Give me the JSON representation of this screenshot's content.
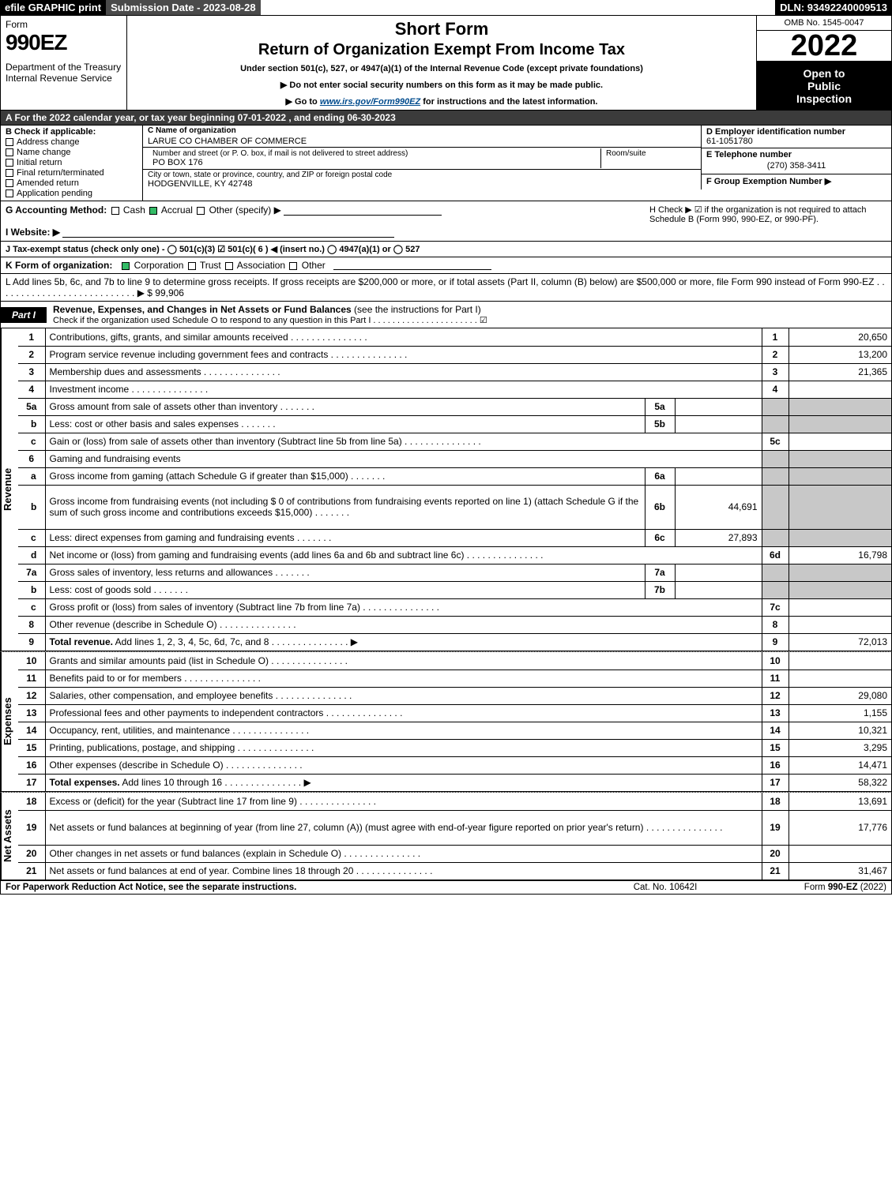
{
  "topbar": {
    "efile": "efile GRAPHIC print",
    "submission": "Submission Date - 2023-08-28",
    "dln": "DLN: 93492240009513"
  },
  "header": {
    "form_label": "Form",
    "form_number": "990EZ",
    "dept1": "Department of the Treasury",
    "dept2": "Internal Revenue Service",
    "title1": "Short Form",
    "title2": "Return of Organization Exempt From Income Tax",
    "subtitle": "Under section 501(c), 527, or 4947(a)(1) of the Internal Revenue Code (except private foundations)",
    "arrow1": "▶ Do not enter social security numbers on this form as it may be made public.",
    "arrow2_pre": "▶ Go to ",
    "arrow2_link": "www.irs.gov/Form990EZ",
    "arrow2_post": " for instructions and the latest information.",
    "omb": "OMB No. 1545-0047",
    "year": "2022",
    "open1": "Open to",
    "open2": "Public",
    "open3": "Inspection"
  },
  "rowA": "A  For the 2022 calendar year, or tax year beginning 07-01-2022 , and ending 06-30-2023",
  "colB": {
    "head": "B  Check if applicable:",
    "items": [
      "Address change",
      "Name change",
      "Initial return",
      "Final return/terminated",
      "Amended return",
      "Application pending"
    ]
  },
  "colC": {
    "name_label": "C Name of organization",
    "name": "LARUE CO CHAMBER OF COMMERCE",
    "street_label": "Number and street (or P. O. box, if mail is not delivered to street address)",
    "street": "PO BOX 176",
    "room_label": "Room/suite",
    "city_label": "City or town, state or province, country, and ZIP or foreign postal code",
    "city": "HODGENVILLE, KY  42748"
  },
  "colDE": {
    "d_label": "D Employer identification number",
    "d_value": "61-1051780",
    "e_label": "E Telephone number",
    "e_value": "(270) 358-3411",
    "f_label": "F Group Exemption Number   ▶"
  },
  "rowG": {
    "g_label": "G Accounting Method:",
    "g_opts": [
      "Cash",
      "Accrual",
      "Other (specify) ▶"
    ],
    "h_text": "H  Check ▶  ☑  if the organization is not required to attach Schedule B (Form 990, 990-EZ, or 990-PF).",
    "i_label": "I Website: ▶"
  },
  "rowJ": "J Tax-exempt status (check only one) - ◯ 501(c)(3)  ☑ 501(c)( 6 ) ◀ (insert no.)  ◯ 4947(a)(1) or  ◯ 527",
  "rowK": {
    "label": "K Form of organization:",
    "opts": [
      "Corporation",
      "Trust",
      "Association",
      "Other"
    ]
  },
  "rowL": {
    "text": "L Add lines 5b, 6c, and 7b to line 9 to determine gross receipts. If gross receipts are $200,000 or more, or if total assets (Part II, column (B) below) are $500,000 or more, file Form 990 instead of Form 990-EZ  .  .  .  .  .  .  .  .  .  .  .  .  .  .  .  .  .  .  .  .  .  .  .  .  .  .  .  ▶ $ ",
    "value": "99,906"
  },
  "part1": {
    "tab": "Part I",
    "title": "Revenue, Expenses, and Changes in Net Assets or Fund Balances",
    "title_note": "(see the instructions for Part I)",
    "checkline": "Check if the organization used Schedule O to respond to any question in this Part I  .  .  .  .  .  .  .  .  .  .  .  .  .  .  .  .  .  .  .  .  .  .  ☑"
  },
  "revenue": {
    "side": "Revenue",
    "rows": [
      {
        "ln": "1",
        "desc": "Contributions, gifts, grants, and similar amounts received",
        "num": "1",
        "val": "20,650"
      },
      {
        "ln": "2",
        "desc": "Program service revenue including government fees and contracts",
        "num": "2",
        "val": "13,200"
      },
      {
        "ln": "3",
        "desc": "Membership dues and assessments",
        "num": "3",
        "val": "21,365"
      },
      {
        "ln": "4",
        "desc": "Investment income",
        "num": "4",
        "val": ""
      },
      {
        "ln": "5a",
        "desc": "Gross amount from sale of assets other than inventory",
        "sub_ln": "5a",
        "sub_val": "",
        "grey_num": true
      },
      {
        "ln": "b",
        "desc": "Less: cost or other basis and sales expenses",
        "sub_ln": "5b",
        "sub_val": "",
        "grey_num": true,
        "indent": true
      },
      {
        "ln": "c",
        "desc": "Gain or (loss) from sale of assets other than inventory (Subtract line 5b from line 5a)",
        "num": "5c",
        "val": "",
        "indent": true
      },
      {
        "ln": "6",
        "desc": "Gaming and fundraising events",
        "grey_num": true,
        "grey_val": true,
        "header": true
      },
      {
        "ln": "a",
        "desc": "Gross income from gaming (attach Schedule G if greater than $15,000)",
        "sub_ln": "6a",
        "sub_val": "",
        "grey_num": true,
        "indent": true
      },
      {
        "ln": "b",
        "desc": "Gross income from fundraising events (not including $  0           of contributions from fundraising events reported on line 1) (attach Schedule G if the sum of such gross income and contributions exceeds $15,000)",
        "sub_ln": "6b",
        "sub_val": "44,691",
        "grey_num": true,
        "indent": true,
        "tall": true
      },
      {
        "ln": "c",
        "desc": "Less: direct expenses from gaming and fundraising events",
        "sub_ln": "6c",
        "sub_val": "27,893",
        "grey_num": true,
        "indent": true
      },
      {
        "ln": "d",
        "desc": "Net income or (loss) from gaming and fundraising events (add lines 6a and 6b and subtract line 6c)",
        "num": "6d",
        "val": "16,798",
        "indent": true
      },
      {
        "ln": "7a",
        "desc": "Gross sales of inventory, less returns and allowances",
        "sub_ln": "7a",
        "sub_val": "",
        "grey_num": true
      },
      {
        "ln": "b",
        "desc": "Less: cost of goods sold",
        "sub_ln": "7b",
        "sub_val": "",
        "grey_num": true,
        "indent": true
      },
      {
        "ln": "c",
        "desc": "Gross profit or (loss) from sales of inventory (Subtract line 7b from line 7a)",
        "num": "7c",
        "val": "",
        "indent": true
      },
      {
        "ln": "8",
        "desc": "Other revenue (describe in Schedule O)",
        "num": "8",
        "val": ""
      },
      {
        "ln": "9",
        "desc": "Total revenue. Add lines 1, 2, 3, 4, 5c, 6d, 7c, and 8",
        "num": "9",
        "val": "72,013",
        "bold": true,
        "arrow": true
      }
    ]
  },
  "expenses": {
    "side": "Expenses",
    "rows": [
      {
        "ln": "10",
        "desc": "Grants and similar amounts paid (list in Schedule O)",
        "num": "10",
        "val": ""
      },
      {
        "ln": "11",
        "desc": "Benefits paid to or for members",
        "num": "11",
        "val": ""
      },
      {
        "ln": "12",
        "desc": "Salaries, other compensation, and employee benefits",
        "num": "12",
        "val": "29,080"
      },
      {
        "ln": "13",
        "desc": "Professional fees and other payments to independent contractors",
        "num": "13",
        "val": "1,155"
      },
      {
        "ln": "14",
        "desc": "Occupancy, rent, utilities, and maintenance",
        "num": "14",
        "val": "10,321"
      },
      {
        "ln": "15",
        "desc": "Printing, publications, postage, and shipping",
        "num": "15",
        "val": "3,295"
      },
      {
        "ln": "16",
        "desc": "Other expenses (describe in Schedule O)",
        "num": "16",
        "val": "14,471"
      },
      {
        "ln": "17",
        "desc": "Total expenses. Add lines 10 through 16",
        "num": "17",
        "val": "58,322",
        "bold": true,
        "arrow": true
      }
    ]
  },
  "netassets": {
    "side": "Net Assets",
    "rows": [
      {
        "ln": "18",
        "desc": "Excess or (deficit) for the year (Subtract line 17 from line 9)",
        "num": "18",
        "val": "13,691"
      },
      {
        "ln": "19",
        "desc": "Net assets or fund balances at beginning of year (from line 27, column (A)) (must agree with end-of-year figure reported on prior year's return)",
        "num": "19",
        "val": "17,776",
        "tall": true
      },
      {
        "ln": "20",
        "desc": "Other changes in net assets or fund balances (explain in Schedule O)",
        "num": "20",
        "val": ""
      },
      {
        "ln": "21",
        "desc": "Net assets or fund balances at end of year. Combine lines 18 through 20",
        "num": "21",
        "val": "31,467"
      }
    ]
  },
  "footer": {
    "left": "For Paperwork Reduction Act Notice, see the separate instructions.",
    "center": "Cat. No. 10642I",
    "right_pre": "Form ",
    "right_bold": "990-EZ",
    "right_post": " (2022)"
  }
}
